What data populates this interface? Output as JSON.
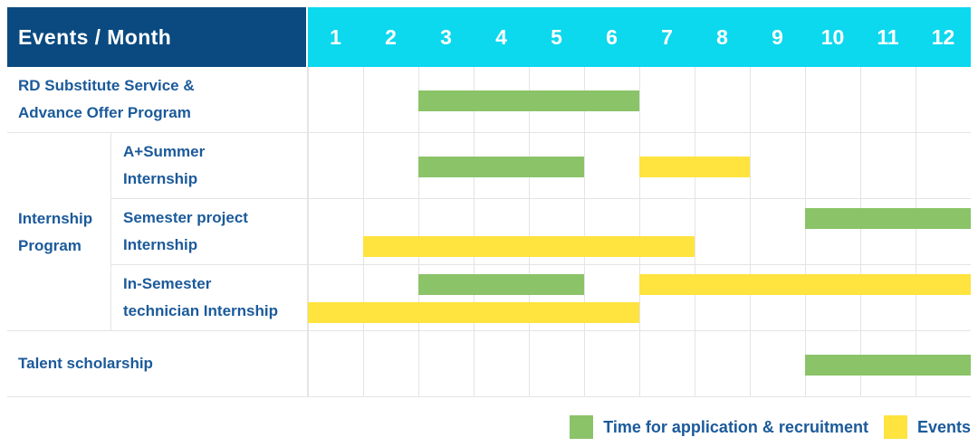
{
  "header": {
    "title": "Events / Month",
    "months": [
      "1",
      "2",
      "3",
      "4",
      "5",
      "6",
      "7",
      "8",
      "9",
      "10",
      "11",
      "12"
    ]
  },
  "colors": {
    "header_bg": "#0a4a80",
    "months_bg": "#0cd8ee",
    "bar_green": "#8bc368",
    "bar_yellow": "#ffe33e",
    "label_text": "#1b5a9a",
    "grid_line": "#e4e4e4",
    "header_text": "#ffffff"
  },
  "chart_data": {
    "type": "bar",
    "subtype": "gantt-schedule",
    "x_unit": "month",
    "x_range": [
      1,
      12
    ],
    "x_ticks": [
      "1",
      "2",
      "3",
      "4",
      "5",
      "6",
      "7",
      "8",
      "9",
      "10",
      "11",
      "12"
    ],
    "grid": true,
    "legend_position": "bottom-right",
    "legend": [
      {
        "color_key": "green",
        "color": "#8bc368",
        "label": "Time for application & recruitment"
      },
      {
        "color_key": "yellow",
        "color": "#ffe33e",
        "label": "Events"
      }
    ],
    "rows": [
      {
        "group": null,
        "label": "RD Substitute Service & Advance Offer Program",
        "label_lines": [
          "RD Substitute Service &",
          "Advance Offer Program"
        ],
        "tracks": [
          [
            {
              "color": "green",
              "start_month": 3,
              "end_month": 6
            }
          ]
        ]
      },
      {
        "group": "Internship Program",
        "label": "A+Summer Internship",
        "label_lines": [
          "A+Summer",
          "Internship"
        ],
        "tracks": [
          [
            {
              "color": "green",
              "start_month": 3,
              "end_month": 5
            },
            {
              "color": "yellow",
              "start_month": 7,
              "end_month": 8
            }
          ]
        ]
      },
      {
        "group": "Internship Program",
        "label": "Semester project Internship",
        "label_lines": [
          "Semester project",
          "Internship"
        ],
        "tracks": [
          [
            {
              "color": "green",
              "start_month": 10,
              "end_month": 12
            }
          ],
          [
            {
              "color": "yellow",
              "start_month": 2,
              "end_month": 7
            }
          ]
        ]
      },
      {
        "group": "Internship Program",
        "label": "In-Semester technician Internship",
        "label_lines": [
          "In-Semester",
          "technician Internship"
        ],
        "tracks": [
          [
            {
              "color": "green",
              "start_month": 3,
              "end_month": 5
            },
            {
              "color": "yellow",
              "start_month": 7,
              "end_month": 12
            }
          ],
          [
            {
              "color": "yellow",
              "start_month": 1,
              "end_month": 6
            }
          ]
        ]
      },
      {
        "group": null,
        "label": "Talent scholarship",
        "label_lines": [
          "Talent scholarship"
        ],
        "tracks": [
          [
            {
              "color": "green",
              "start_month": 10,
              "end_month": 12
            }
          ]
        ]
      }
    ]
  }
}
